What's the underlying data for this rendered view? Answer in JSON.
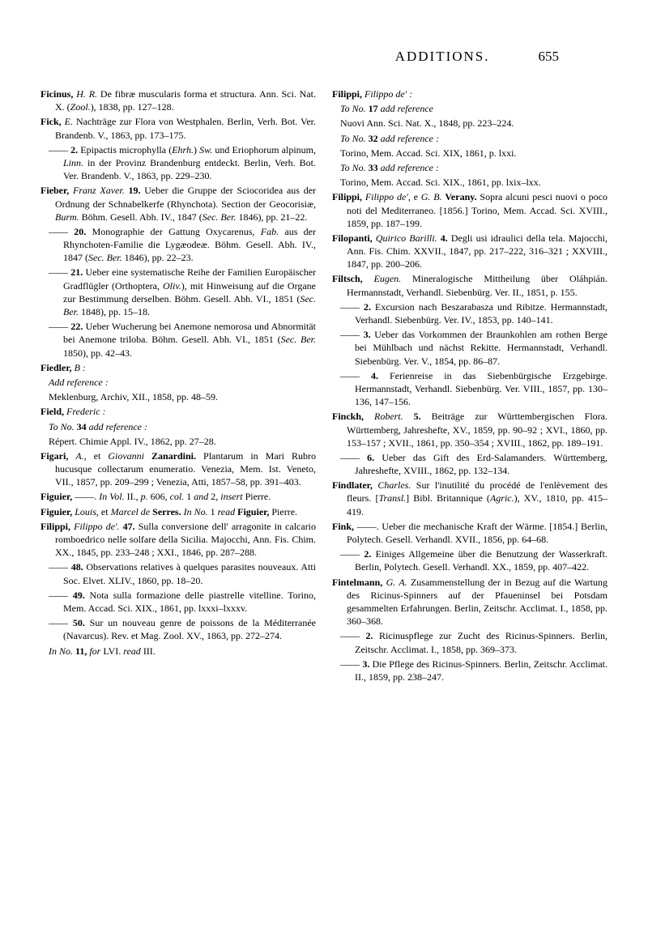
{
  "header": {
    "title": "ADDITIONS.",
    "page": "655"
  },
  "left": [
    {
      "html": "<span class='author'>Ficinus,</span> <em>H. R.</em> De fibræ muscularis forma et structura. Ann. Sci. Nat. X. (<em>Zool.</em>), 1838, pp. 127–128."
    },
    {
      "html": "<span class='author'>Fick,</span> <em>E.</em> Nachträge zur Flora von Westphalen. Berlin, Verh. Bot. Ver. Brandenb. V., 1863, pp. 173–175."
    },
    {
      "sub": true,
      "html": "—— <span class='num'>2.</span> Epipactis microphylla (<em>Ehrh.</em>) <em>Sw.</em> und Eriophorum alpinum, <em>Linn.</em> in der Provinz Brandenburg entdeckt. Berlin, Verh. Bot. Ver. Brandenb. V., 1863, pp. 229–230."
    },
    {
      "html": "<span class='author'>Fieber,</span> <em>Franz Xaver.</em> <span class='num'>19.</span> Ueber die Gruppe der Sciocoridea aus der Ordnung der Schnabelkerfe (Rhynchota). Section der Geocorisiæ, <em>Burm.</em> Böhm. Gesell. Abh. IV., 1847 (<em>Sec. Ber.</em> 1846), pp. 21–22."
    },
    {
      "sub": true,
      "html": "—— <span class='num'>20.</span> Monographie der Gattung Oxycarenus, <em>Fab.</em> aus der Rhynchoten-Familie die Lygæodeæ. Böhm. Gesell. Abh. IV., 1847 (<em>Sec. Ber.</em> 1846), pp. 22–23."
    },
    {
      "sub": true,
      "html": "—— <span class='num'>21.</span> Ueber eine systematische Reihe der Familien Europäischer Gradflügler (Orthoptera, <em>Oliv.</em>), mit Hinweisung auf die Organe zur Bestimmung derselben. Böhm. Gesell. Abh. VI., 1851 (<em>Sec. Ber.</em> 1848), pp. 15–18."
    },
    {
      "sub": true,
      "html": "—— <span class='num'>22.</span> Ueber Wucherung bei Anemone nemorosa und Abnormität bei Anemone triloba. Böhm. Gesell. Abh. VI., 1851 (<em>Sec. Ber.</em> 1850), pp. 42–43."
    },
    {
      "html": "<span class='author'>Fiedler,</span> <em>B :</em>"
    },
    {
      "sub": true,
      "html": "<em>Add reference :</em>"
    },
    {
      "sub": true,
      "html": "Meklenburg, Archiv, XII., 1858, pp. 48–59."
    },
    {
      "html": "<span class='author'>Field,</span> <em>Frederic :</em>"
    },
    {
      "sub": true,
      "html": "<em>To No.</em> <span class='num'>34</span> <em>add reference :</em>"
    },
    {
      "sub": true,
      "html": "Répert. Chimie Appl. IV., 1862, pp. 27–28."
    },
    {
      "html": "<span class='author'>Figari,</span> <em>A.</em>, et <em>Giovanni</em> <span class='author'>Zanardini.</span> Plantarum in Mari Rubro hucusque collectarum enumeratio. Venezia, Mem. Ist. Veneto, VII., 1857, pp. 209–299 ; Venezia, Atti, 1857–58, pp. 391–403."
    },
    {
      "html": "<span class='author'>Figuier,</span> ——. <em>In Vol.</em> II., <em>p.</em> 606, <em>col.</em> 1 <em>and</em> 2, <em>insert</em> Pierre."
    },
    {
      "html": "<span class='author'>Figuier,</span> <em>Louis</em>, et <em>Marcel de</em> <span class='author'>Serres.</span> <em>In No.</em> 1 <em>read</em> <span class='author'>Figuier,</span> Pierre."
    },
    {
      "html": "<span class='author'>Filippi,</span> <em>Filippo de'.</em> <span class='num'>47.</span> Sulla conversione dell' arragonite in calcario romboedrico nelle solfare della Sicilia. Majocchi, Ann. Fis. Chim. XX., 1845, pp. 233–248 ; XXI., 1846, pp. 287–288."
    },
    {
      "sub": true,
      "html": "—— <span class='num'>48.</span> Observations relatives à quelques parasites nouveaux. Atti Soc. Elvet. XLIV., 1860, pp. 18–20."
    },
    {
      "sub": true,
      "html": "—— <span class='num'>49.</span> Nota sulla formazione delle piastrelle vitelline. Torino, Mem. Accad. Sci. XIX., 1861, pp. lxxxi–lxxxv."
    },
    {
      "sub": true,
      "html": "—— <span class='num'>50.</span> Sur un nouveau genre de poissons de la Méditerranée (Navarcus). Rev. et Mag. Zool. XV., 1863, pp. 272–274."
    },
    {
      "sub": true,
      "html": "<em>In No.</em> <span class='num'>11,</span> <em>for</em> LVI. <em>read</em> III."
    }
  ],
  "right": [
    {
      "html": "<span class='author'>Filippi,</span> <em>Filippo de' :</em>"
    },
    {
      "sub": true,
      "html": "<em>To No.</em> <span class='num'>17</span> <em>add reference</em>"
    },
    {
      "sub": true,
      "html": "Nuovi Ann. Sci. Nat. X., 1848, pp. 223–224."
    },
    {
      "sub": true,
      "html": "<em>To No.</em> <span class='num'>32</span> <em>add reference :</em>"
    },
    {
      "sub": true,
      "html": "Torino, Mem. Accad. Sci. XIX, 1861, p. lxxi."
    },
    {
      "sub": true,
      "html": "<em>To No.</em> <span class='num'>33</span> <em>add reference :</em>"
    },
    {
      "sub": true,
      "html": "Torino, Mem. Accad. Sci. XIX., 1861, pp. lxix–lxx."
    },
    {
      "html": "<span class='author'>Filippi,</span> <em>Filippo de'</em>, e <em>G. B.</em> <span class='author'>Verany.</span> Sopra alcuni pesci nuovi o poco noti del Mediterraneo. [1856.] Torino, Mem. Accad. Sci. XVIII., 1859, pp. 187–199."
    },
    {
      "html": "<span class='author'>Filopanti,</span> <em>Quirico Barilli.</em> <span class='num'>4.</span> Degli usi idraulici della tela. Majocchi, Ann. Fis. Chim. XXVII., 1847, pp. 217–222, 316–321 ; XXVIII., 1847, pp. 200–206."
    },
    {
      "html": "<span class='author'>Filtsch,</span> <em>Eugen.</em> Mineralogische Mittheilung über Oláhpián. Hermannstadt, Verhandl. Siebenbürg. Ver. II., 1851, p. 155."
    },
    {
      "sub": true,
      "html": "—— <span class='num'>2.</span> Excursion nach Beszarabasza und Ribitze. Hermannstadt, Verhandl. Siebenbürg. Ver. IV., 1853, pp. 140–141."
    },
    {
      "sub": true,
      "html": "—— <span class='num'>3.</span> Ueber das Vorkommen der Braunkohlen am rothen Berge bei Mühlbach und nächst Rekitte. Hermannstadt, Verhandl. Siebenbürg. Ver. V., 1854, pp. 86–87."
    },
    {
      "sub": true,
      "html": "—— <span class='num'>4.</span> Ferienreise in das Siebenbürgische Erzgebirge. Hermannstadt, Verhandl. Siebenbürg. Ver. VIII., 1857, pp. 130–136, 147–156."
    },
    {
      "html": "<span class='author'>Finckh,</span> <em>Robert.</em> <span class='num'>5.</span> Beiträge zur Württembergischen Flora. Württemberg, Jahreshefte, XV., 1859, pp. 90–92 ; XVI., 1860, pp. 153–157 ; XVII., 1861, pp. 350–354 ; XVIII., 1862, pp. 189–191."
    },
    {
      "sub": true,
      "html": "—— <span class='num'>6.</span> Ueber das Gift des Erd-Salamanders. Württemberg, Jahreshefte, XVIII., 1862, pp. 132–134."
    },
    {
      "html": "<span class='author'>Findlater,</span> <em>Charles.</em> Sur l'inutilité du procédé de l'enlèvement des fleurs. [<em>Transl.</em>] Bibl. Britannique (<em>Agric.</em>), XV., 1810, pp. 415–419."
    },
    {
      "html": "<span class='author'>Fink,</span> ——. Ueber die mechanische Kraft der Wärme. [1854.] Berlin, Polytech. Gesell. Verhandl. XVII., 1856, pp. 64–68."
    },
    {
      "sub": true,
      "html": "—— <span class='num'>2.</span> Einiges Allgemeine über die Benutzung der Wasserkraft. Berlin, Polytech. Gesell. Verhandl. XX., 1859, pp. 407–422."
    },
    {
      "html": "<span class='author'>Fintelmann,</span> <em>G. A.</em> Zusammenstellung der in Bezug auf die Wartung des Ricinus-Spinners auf der Pfaueninsel bei Potsdam gesammelten Erfahrungen. Berlin, Zeitschr. Acclimat. I., 1858, pp. 360–368."
    },
    {
      "sub": true,
      "html": "—— <span class='num'>2.</span> Ricinuspflege zur Zucht des Ricinus-Spinners. Berlin, Zeitschr. Acclimat. I., 1858, pp. 369–373."
    },
    {
      "sub": true,
      "html": "—— <span class='num'>3.</span> Die Pflege des Ricinus-Spinners. Berlin, Zeitschr. Acclimat. II., 1859, pp. 238–247."
    }
  ]
}
